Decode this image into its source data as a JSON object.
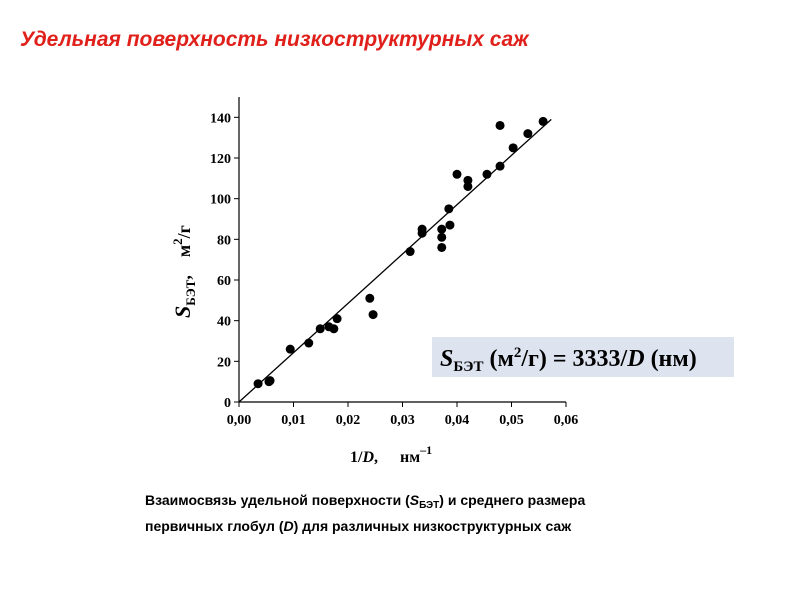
{
  "chart_data": {
    "type": "scatter",
    "title": "Удельная поверхность низкоструктурных саж",
    "y_label": {
      "symbol": "S",
      "subscript": "БЭТ",
      "sep": ",",
      "unit": "м",
      "unit_sup": "2",
      "unit_rest": "/г"
    },
    "x_label": {
      "num": "1/",
      "var": "D",
      "sep": ",",
      "unit": "нм",
      "unit_sup": "–1"
    },
    "formula": {
      "symbol": "S",
      "subscript": "БЭТ",
      "unit_open": " (м",
      "unit_sup": "2",
      "unit_close": "/г) = 3333/",
      "var": "D",
      "tail": " (нм)"
    },
    "caption": {
      "line1_a": "Взаимосвязь удельной поверхности (",
      "line1_s": "S",
      "line1_sub": "БЭТ",
      "line1_b": ") и среднего размера",
      "line2_a": "первичных глобул (",
      "line2_d": "D",
      "line2_b": ")  для различных  низкоструктурных саж"
    },
    "color": "#000000",
    "x": [
      0.0035,
      0.0055,
      0.0057,
      0.0094,
      0.0128,
      0.0149,
      0.0165,
      0.0174,
      0.018,
      0.024,
      0.0246,
      0.0314,
      0.0336,
      0.0336,
      0.0372,
      0.0372,
      0.0372,
      0.0385,
      0.0387,
      0.04,
      0.042,
      0.042,
      0.0455,
      0.0479,
      0.0479,
      0.0503,
      0.053,
      0.0558
    ],
    "values": [
      9,
      10,
      10.5,
      26,
      29,
      36,
      37,
      36,
      41,
      51,
      43,
      74,
      85,
      83,
      85,
      81,
      76,
      95,
      87,
      112,
      109,
      106,
      112,
      116,
      136,
      125,
      132,
      138
    ],
    "fit_line": {
      "x": [
        0,
        0.0573
      ],
      "y": [
        0,
        139
      ]
    },
    "xlim": [
      0,
      0.06
    ],
    "xticks": [
      {
        "value": 0,
        "label": "0,00"
      },
      {
        "value": 0.01,
        "label": "0,01"
      },
      {
        "value": 0.02,
        "label": "0,02"
      },
      {
        "value": 0.03,
        "label": "0,03"
      },
      {
        "value": 0.04,
        "label": "0,04"
      },
      {
        "value": 0.05,
        "label": "0,05"
      },
      {
        "value": 0.06,
        "label": "0,06"
      }
    ],
    "ylim": [
      0,
      150
    ],
    "yticks": [
      0,
      20,
      40,
      60,
      80,
      100,
      120,
      140
    ]
  }
}
